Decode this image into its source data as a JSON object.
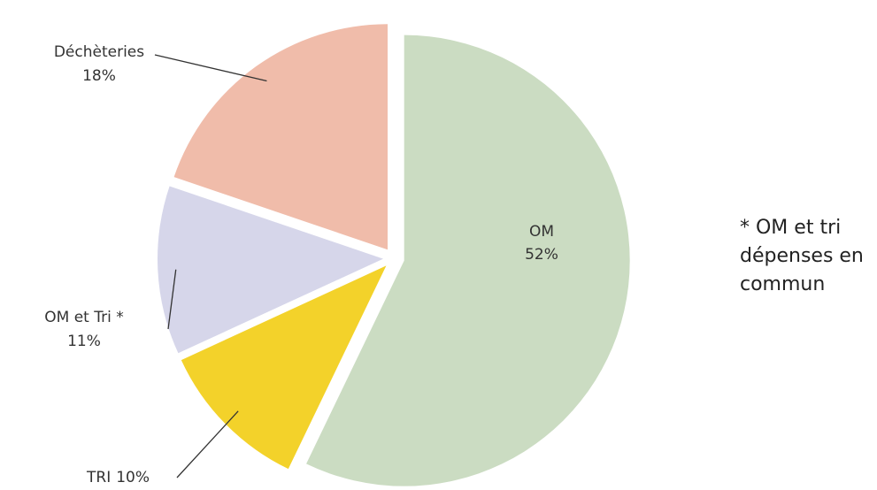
{
  "chart_data": {
    "type": "pie",
    "categories": [
      "OM",
      "TRI",
      "OM et Tri *",
      "Déchèteries"
    ],
    "values": [
      52,
      10,
      11,
      18
    ],
    "value_labels": [
      "52%",
      "10%",
      "11%",
      "18%"
    ],
    "colors": [
      "#cbdcc2",
      "#f3d22a",
      "#d6d6ea",
      "#f0bcaa"
    ],
    "note": [
      "* OM et tri",
      "dépenses en",
      "commun"
    ]
  }
}
